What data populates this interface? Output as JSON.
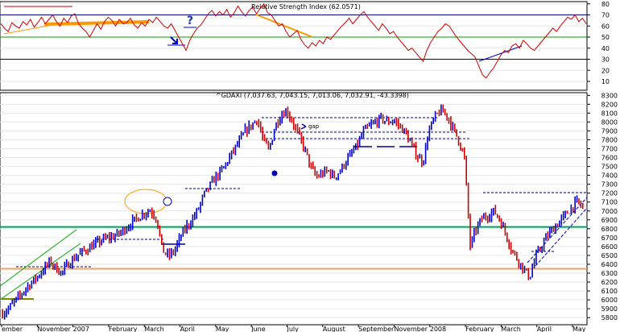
{
  "chart_data": [
    {
      "type": "line",
      "title": "Relative Strength Index (62.0571)",
      "ylim": [
        2,
        82
      ],
      "yticks": [
        10,
        20,
        30,
        40,
        50,
        60,
        70,
        80
      ],
      "reference_levels": [
        30,
        50,
        70
      ],
      "colors": {
        "line": "#d00000",
        "ref_30_70": "#000080",
        "ref_50": "#00a000",
        "trend_orange": "#ff9900",
        "trend_blue": "#0000cc"
      },
      "series": [
        {
          "values": [
            62,
            58,
            55,
            63,
            60,
            58,
            64,
            61,
            66,
            59,
            63,
            68,
            62,
            66,
            70,
            64,
            60,
            67,
            63,
            69,
            71,
            62,
            58,
            55,
            50,
            56,
            62,
            57,
            64,
            68,
            65,
            60,
            66,
            62,
            63,
            67,
            61,
            58,
            63,
            60,
            66,
            63,
            68,
            64,
            60,
            58,
            62,
            56,
            50,
            44,
            38,
            47,
            53,
            58,
            61,
            66,
            71,
            74,
            69,
            73,
            70,
            75,
            68,
            72,
            78,
            73,
            69,
            74,
            77,
            71,
            76,
            80,
            72,
            70,
            65,
            60,
            62,
            55,
            50,
            53,
            56,
            48,
            43,
            40,
            45,
            42,
            47,
            44,
            50,
            48,
            52,
            56,
            60,
            63,
            67,
            62,
            66,
            70,
            73,
            68,
            64,
            60,
            56,
            62,
            58,
            53,
            55,
            50,
            46,
            42,
            38,
            40,
            36,
            32,
            28,
            38,
            45,
            50,
            55,
            58,
            62,
            60,
            55,
            50,
            46,
            42,
            38,
            35,
            32,
            24,
            16,
            13,
            18,
            22,
            28,
            34,
            38,
            36,
            42,
            44,
            40,
            47,
            44,
            40,
            38,
            42,
            46,
            50,
            54,
            58,
            55,
            60,
            64,
            68,
            66,
            70,
            64,
            67,
            62
          ]
        }
      ]
    },
    {
      "type": "candlestick",
      "title": "^GDAXI (7,037.63, 7,043.15, 7,013.06, 7,032.91, -43.3398)",
      "ylim": [
        5720,
        8330
      ],
      "yticks": [
        5800,
        5900,
        6000,
        6100,
        6200,
        6300,
        6400,
        6500,
        6600,
        6700,
        6800,
        6900,
        7000,
        7100,
        7200,
        7300,
        7400,
        7500,
        7600,
        7700,
        7800,
        7900,
        8000,
        8100,
        8200,
        8300
      ],
      "xticks": [
        "ember",
        "November",
        "2007",
        "February",
        "March",
        "April",
        "May",
        "June",
        "July",
        "August",
        "September",
        "November",
        "2008",
        "February",
        "March",
        "April",
        "May"
      ],
      "reference_levels": [
        6820,
        6350
      ],
      "annotations": [
        "gap"
      ],
      "colors": {
        "up": "#0000cc",
        "down": "#cc0000",
        "green_line": "#00a060",
        "orange_line": "#f0a060",
        "support_dash": "#000080"
      },
      "series": [
        {
          "name": "^GDAXI",
          "values": [
            5850,
            5900,
            5980,
            6050,
            6140,
            6200,
            6270,
            6350,
            6430,
            6360,
            6300,
            6400,
            6460,
            6520,
            6560,
            6600,
            6640,
            6680,
            6700,
            6720,
            6760,
            6820,
            6880,
            6930,
            6980,
            7010,
            6920,
            6560,
            6490,
            6550,
            6700,
            6820,
            6900,
            7010,
            7180,
            7280,
            7380,
            7450,
            7560,
            7680,
            7780,
            7900,
            7960,
            8040,
            7800,
            7680,
            7950,
            8080,
            8130,
            8000,
            7850,
            7700,
            7500,
            7380,
            7420,
            7450,
            7380,
            7450,
            7560,
            7650,
            7750,
            7900,
            7950,
            8000,
            8040,
            8000,
            8020,
            7960,
            7880,
            7750,
            7620,
            7550,
            7900,
            8050,
            8130,
            8080,
            7940,
            7800,
            7600,
            6600,
            6800,
            6920,
            6950,
            7000,
            6900,
            6740,
            6560,
            6450,
            6350,
            6250,
            6480,
            6600,
            6720,
            6800,
            6880,
            6950,
            7030,
            7100,
            7040
          ]
        }
      ]
    }
  ]
}
